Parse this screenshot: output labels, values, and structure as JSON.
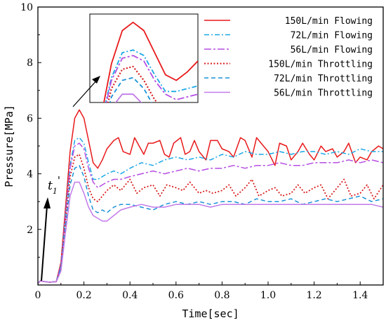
{
  "chart_data": {
    "type": "line",
    "title": "",
    "xlabel": "Time[sec]",
    "ylabel": "Pressure[MPa]",
    "xlim": [
      0,
      1.5
    ],
    "ylim": [
      0,
      10
    ],
    "xticks": [
      0,
      0.2,
      0.4,
      0.6,
      0.8,
      1.0,
      1.2,
      1.4
    ],
    "xtick_labels": [
      "0",
      "0.2",
      "0.4",
      "0.6",
      "0.8",
      "1.0",
      "1.2",
      "1.4"
    ],
    "yticks": [
      2,
      4,
      6,
      8,
      10
    ],
    "ytick_labels": [
      "2",
      "4",
      "6",
      "8",
      "10"
    ],
    "grid": false,
    "legend_position": "top-right",
    "annotation": {
      "text": "t",
      "subscript": "1",
      "prime": "'"
    },
    "inset": "zoom of peak region near t = 0.18 s",
    "series": [
      {
        "name": "150L/min Flowing",
        "color": "#e8191b",
        "dash": "solid",
        "x": [
          0,
          0.01,
          0.03,
          0.05,
          0.08,
          0.1,
          0.12,
          0.14,
          0.16,
          0.18,
          0.2,
          0.22,
          0.24,
          0.26,
          0.28,
          0.3,
          0.33,
          0.35,
          0.37,
          0.4,
          0.42,
          0.44,
          0.46,
          0.48,
          0.5,
          0.53,
          0.55,
          0.57,
          0.59,
          0.62,
          0.64,
          0.66,
          0.68,
          0.7,
          0.73,
          0.75,
          0.78,
          0.8,
          0.83,
          0.85,
          0.88,
          0.9,
          0.93,
          0.95,
          0.98,
          1.0,
          1.03,
          1.05,
          1.08,
          1.1,
          1.13,
          1.15,
          1.18,
          1.2,
          1.23,
          1.25,
          1.28,
          1.3,
          1.33,
          1.35,
          1.38,
          1.4,
          1.43,
          1.45,
          1.48,
          1.5
        ],
        "y": [
          0.05,
          0.15,
          0.12,
          0.1,
          0.12,
          0.8,
          2.8,
          4.8,
          6.0,
          6.3,
          6.0,
          5.2,
          4.4,
          4.2,
          4.5,
          4.9,
          5.2,
          5.3,
          4.8,
          4.7,
          5.3,
          5.0,
          4.7,
          5.1,
          5.1,
          5.2,
          4.7,
          4.6,
          5.1,
          5.3,
          4.7,
          4.8,
          5.2,
          4.8,
          4.5,
          5.2,
          5.2,
          4.9,
          4.8,
          4.6,
          5.3,
          5.2,
          4.6,
          5.3,
          5.0,
          4.8,
          4.3,
          5.1,
          5.0,
          4.5,
          4.8,
          5.1,
          4.7,
          4.5,
          5.0,
          4.8,
          4.9,
          4.6,
          4.8,
          5.1,
          4.4,
          4.6,
          4.5,
          4.8,
          5.0,
          4.9
        ]
      },
      {
        "name": "72L/min Flowing",
        "color": "#1aa7e6",
        "dash": "dashdot",
        "x": [
          0,
          0.01,
          0.03,
          0.05,
          0.08,
          0.1,
          0.12,
          0.14,
          0.16,
          0.18,
          0.2,
          0.22,
          0.24,
          0.26,
          0.28,
          0.3,
          0.33,
          0.36,
          0.4,
          0.45,
          0.5,
          0.55,
          0.6,
          0.65,
          0.7,
          0.75,
          0.8,
          0.85,
          0.9,
          0.95,
          1.0,
          1.05,
          1.1,
          1.15,
          1.2,
          1.25,
          1.3,
          1.35,
          1.4,
          1.45,
          1.5
        ],
        "y": [
          0.05,
          0.15,
          0.12,
          0.1,
          0.12,
          0.7,
          2.6,
          4.3,
          5.2,
          5.3,
          5.1,
          4.4,
          3.8,
          3.8,
          3.9,
          4.0,
          4.1,
          4.0,
          4.2,
          4.4,
          4.3,
          4.5,
          4.6,
          4.5,
          4.6,
          4.5,
          4.7,
          4.6,
          4.8,
          4.7,
          4.7,
          4.8,
          4.7,
          4.8,
          4.8,
          4.7,
          4.8,
          4.7,
          4.9,
          4.8,
          4.8
        ]
      },
      {
        "name": "56L/min Flowing",
        "color": "#b64fe3",
        "dash": "dashdotlong",
        "x": [
          0,
          0.01,
          0.03,
          0.05,
          0.08,
          0.1,
          0.12,
          0.14,
          0.16,
          0.18,
          0.2,
          0.22,
          0.24,
          0.26,
          0.28,
          0.3,
          0.33,
          0.36,
          0.4,
          0.45,
          0.5,
          0.55,
          0.6,
          0.65,
          0.7,
          0.75,
          0.8,
          0.85,
          0.9,
          0.95,
          1.0,
          1.05,
          1.1,
          1.15,
          1.2,
          1.25,
          1.3,
          1.35,
          1.4,
          1.45,
          1.5
        ],
        "y": [
          0.05,
          0.15,
          0.12,
          0.1,
          0.12,
          0.7,
          2.5,
          4.2,
          5.0,
          5.1,
          4.9,
          4.2,
          3.7,
          3.5,
          3.6,
          3.7,
          3.8,
          3.8,
          3.9,
          4.0,
          4.1,
          4.0,
          4.1,
          4.2,
          4.1,
          4.2,
          4.2,
          4.3,
          4.2,
          4.3,
          4.3,
          4.4,
          4.3,
          4.3,
          4.4,
          4.4,
          4.4,
          4.5,
          4.4,
          4.5,
          4.4
        ]
      },
      {
        "name": "150L/min Throttling",
        "color": "#d81c1c",
        "dash": "dotted",
        "x": [
          0,
          0.01,
          0.03,
          0.05,
          0.08,
          0.1,
          0.12,
          0.14,
          0.16,
          0.18,
          0.2,
          0.22,
          0.24,
          0.26,
          0.28,
          0.3,
          0.33,
          0.36,
          0.4,
          0.43,
          0.46,
          0.5,
          0.53,
          0.56,
          0.6,
          0.63,
          0.66,
          0.7,
          0.73,
          0.76,
          0.8,
          0.83,
          0.86,
          0.9,
          0.93,
          0.96,
          1.0,
          1.03,
          1.06,
          1.1,
          1.13,
          1.16,
          1.2,
          1.23,
          1.26,
          1.3,
          1.33,
          1.36,
          1.4,
          1.43,
          1.46,
          1.5
        ],
        "y": [
          0.05,
          0.15,
          0.12,
          0.1,
          0.12,
          0.6,
          2.3,
          3.9,
          4.6,
          4.7,
          4.2,
          3.5,
          3.1,
          3.0,
          3.2,
          3.4,
          3.6,
          3.4,
          3.8,
          3.3,
          3.5,
          3.6,
          3.2,
          3.6,
          3.5,
          3.4,
          3.7,
          3.3,
          3.4,
          3.3,
          3.4,
          3.6,
          3.2,
          3.5,
          3.8,
          3.2,
          3.4,
          3.5,
          3.2,
          3.3,
          3.6,
          3.3,
          3.5,
          3.6,
          3.1,
          3.5,
          3.8,
          3.2,
          3.3,
          3.6,
          3.1,
          3.6
        ]
      },
      {
        "name": "72L/min Throttling",
        "color": "#1a93d8",
        "dash": "dashed",
        "x": [
          0,
          0.01,
          0.03,
          0.05,
          0.08,
          0.1,
          0.12,
          0.14,
          0.16,
          0.18,
          0.2,
          0.22,
          0.24,
          0.26,
          0.28,
          0.3,
          0.33,
          0.36,
          0.4,
          0.45,
          0.5,
          0.55,
          0.6,
          0.65,
          0.7,
          0.75,
          0.8,
          0.85,
          0.9,
          0.95,
          1.0,
          1.05,
          1.1,
          1.15,
          1.2,
          1.25,
          1.3,
          1.35,
          1.4,
          1.45,
          1.5
        ],
        "y": [
          0.05,
          0.15,
          0.12,
          0.1,
          0.12,
          0.6,
          2.1,
          3.6,
          4.2,
          4.3,
          3.9,
          3.2,
          2.7,
          2.6,
          2.7,
          2.6,
          2.8,
          2.9,
          2.9,
          2.8,
          2.7,
          2.9,
          3.0,
          2.9,
          3.0,
          2.9,
          3.0,
          3.0,
          2.9,
          3.1,
          3.0,
          3.0,
          3.1,
          2.9,
          3.0,
          3.1,
          3.0,
          3.1,
          3.2,
          3.0,
          3.1
        ]
      },
      {
        "name": "56L/min Throttling",
        "color": "#c27ae8",
        "dash": "solid",
        "x": [
          0,
          0.01,
          0.03,
          0.05,
          0.08,
          0.1,
          0.12,
          0.14,
          0.16,
          0.18,
          0.2,
          0.22,
          0.24,
          0.26,
          0.28,
          0.3,
          0.33,
          0.36,
          0.4,
          0.45,
          0.5,
          0.55,
          0.6,
          0.65,
          0.7,
          0.75,
          0.8,
          0.85,
          0.9,
          0.95,
          1.0,
          1.05,
          1.1,
          1.15,
          1.2,
          1.25,
          1.3,
          1.35,
          1.4,
          1.45,
          1.5
        ],
        "y": [
          0.05,
          0.15,
          0.12,
          0.1,
          0.12,
          0.5,
          1.9,
          3.2,
          3.7,
          3.7,
          3.3,
          2.8,
          2.5,
          2.4,
          2.3,
          2.3,
          2.5,
          2.7,
          2.8,
          2.9,
          2.8,
          2.8,
          2.9,
          2.9,
          2.9,
          2.8,
          2.9,
          2.9,
          2.9,
          2.9,
          2.9,
          2.9,
          2.9,
          2.9,
          2.9,
          2.9,
          2.9,
          2.9,
          2.9,
          2.9,
          2.8
        ]
      }
    ]
  }
}
